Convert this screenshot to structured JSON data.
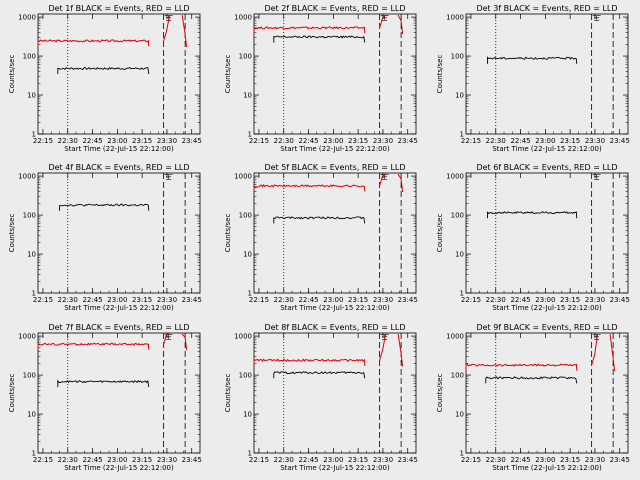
{
  "figure": {
    "background": "#ececec",
    "series_colors": {
      "events": "#000000",
      "lld": "#dd0000"
    }
  },
  "chart_data": [
    {
      "type": "line",
      "detector": "1f",
      "title": "Det 1f BLACK = Events, RED = LLD",
      "xlabel": "Start Time (22-Jul-15 22:12:00)",
      "ylabel": "Counts/sec",
      "xticks": [
        "22:15",
        "22:30",
        "22:45",
        "23:00",
        "23:15",
        "23:30",
        "23:45"
      ],
      "yticks": [
        "1",
        "10",
        "100",
        "1000"
      ],
      "yscale": "log",
      "ylim": [
        1,
        1200
      ],
      "events": {
        "start": "22:24",
        "end": "23:19",
        "level": 48
      },
      "lld": {
        "start": "22:12",
        "end": "23:19",
        "level": 245,
        "spike": true
      },
      "markers": {
        "dotted": "22:30",
        "dashed": [
          "23:28",
          "23:41"
        ]
      },
      "symbol": "±"
    },
    {
      "type": "line",
      "detector": "2f",
      "title": "Det 2f BLACK = Events, RED = LLD",
      "xlabel": "Start Time (22-Jul-15 22:12:00)",
      "ylabel": "Counts/sec",
      "xticks": [
        "22:15",
        "22:30",
        "22:45",
        "23:00",
        "23:15",
        "23:30",
        "23:45"
      ],
      "yticks": [
        "1",
        "10",
        "100",
        "1000"
      ],
      "yscale": "log",
      "ylim": [
        1,
        1200
      ],
      "events": {
        "start": "22:24",
        "end": "23:19",
        "level": 310
      },
      "lld": {
        "start": "22:12",
        "end": "23:19",
        "level": 530,
        "spike": true
      },
      "markers": {
        "dotted": "22:30",
        "dashed": [
          "23:28",
          "23:41"
        ]
      },
      "symbol": "±"
    },
    {
      "type": "line",
      "detector": "3f",
      "title": "Det 3f BLACK = Events, RED = LLD",
      "xlabel": "Start Time (22-Jul-15 22:12:00)",
      "ylabel": "Counts/sec",
      "xticks": [
        "22:15",
        "22:30",
        "22:45",
        "23:00",
        "23:15",
        "23:30",
        "23:45"
      ],
      "yticks": [
        "1",
        "10",
        "100",
        "1000"
      ],
      "yscale": "log",
      "ylim": [
        1,
        1200
      ],
      "events": {
        "start": "22:25",
        "end": "23:19",
        "level": 88
      },
      "lld": null,
      "markers": {
        "dotted": "22:30",
        "dashed": [
          "23:28",
          "23:41"
        ]
      },
      "symbol": "±"
    },
    {
      "type": "line",
      "detector": "4f",
      "title": "Det 4f BLACK = Events, RED = LLD",
      "xlabel": "Start Time (22-Jul-15 22:12:00)",
      "ylabel": "Counts/sec",
      "xticks": [
        "22:15",
        "22:30",
        "22:45",
        "23:00",
        "23:15",
        "23:30",
        "23:45"
      ],
      "yticks": [
        "1",
        "10",
        "100",
        "1000"
      ],
      "yscale": "log",
      "ylim": [
        1,
        1200
      ],
      "events": {
        "start": "22:25",
        "end": "23:19",
        "level": 180
      },
      "lld": null,
      "markers": {
        "dotted": "22:30",
        "dashed": [
          "23:28",
          "23:41"
        ]
      },
      "symbol": "±"
    },
    {
      "type": "line",
      "detector": "5f",
      "title": "Det 5f BLACK = Events, RED = LLD",
      "xlabel": "Start Time (22-Jul-15 22:12:00)",
      "ylabel": "Counts/sec",
      "xticks": [
        "22:15",
        "22:30",
        "22:45",
        "23:00",
        "23:15",
        "23:30",
        "23:45"
      ],
      "yticks": [
        "1",
        "10",
        "100",
        "1000"
      ],
      "yscale": "log",
      "ylim": [
        1,
        1200
      ],
      "events": {
        "start": "22:24",
        "end": "23:19",
        "level": 85
      },
      "lld": {
        "start": "22:12",
        "end": "23:19",
        "level": 560,
        "spike": true
      },
      "markers": {
        "dotted": "22:30",
        "dashed": [
          "23:28",
          "23:41"
        ]
      },
      "symbol": "±"
    },
    {
      "type": "line",
      "detector": "6f",
      "title": "Det 6f BLACK = Events, RED = LLD",
      "xlabel": "Start Time (22-Jul-15 22:12:00)",
      "ylabel": "Counts/sec",
      "xticks": [
        "22:15",
        "22:30",
        "22:45",
        "23:00",
        "23:15",
        "23:30",
        "23:45"
      ],
      "yticks": [
        "1",
        "10",
        "100",
        "1000"
      ],
      "yscale": "log",
      "ylim": [
        1,
        1200
      ],
      "events": {
        "start": "22:25",
        "end": "23:19",
        "level": 115
      },
      "lld": null,
      "markers": {
        "dotted": "22:30",
        "dashed": [
          "23:28",
          "23:41"
        ]
      },
      "symbol": "±"
    },
    {
      "type": "line",
      "detector": "7f",
      "title": "Det 7f BLACK = Events, RED = LLD",
      "xlabel": "Start Time (22-Jul-15 22:12:00)",
      "ylabel": "Counts/sec",
      "xticks": [
        "22:15",
        "22:30",
        "22:45",
        "23:00",
        "23:15",
        "23:30",
        "23:45"
      ],
      "yticks": [
        "1",
        "10",
        "100",
        "1000"
      ],
      "yscale": "log",
      "ylim": [
        1,
        1200
      ],
      "events": {
        "start": "22:24",
        "end": "23:19",
        "level": 68
      },
      "lld": {
        "start": "22:12",
        "end": "23:19",
        "level": 620,
        "spike": true
      },
      "markers": {
        "dotted": "22:30",
        "dashed": [
          "23:28",
          "23:41"
        ]
      },
      "symbol": "±"
    },
    {
      "type": "line",
      "detector": "8f",
      "title": "Det 8f BLACK = Events, RED = LLD",
      "xlabel": "Start Time (22-Jul-15 22:12:00)",
      "ylabel": "Counts/sec",
      "xticks": [
        "22:15",
        "22:30",
        "22:45",
        "23:00",
        "23:15",
        "23:30",
        "23:45"
      ],
      "yticks": [
        "1",
        "10",
        "100",
        "1000"
      ],
      "yscale": "log",
      "ylim": [
        1,
        1200
      ],
      "events": {
        "start": "22:24",
        "end": "23:19",
        "level": 115
      },
      "lld": {
        "start": "22:12",
        "end": "23:19",
        "level": 240,
        "spike": true
      },
      "markers": {
        "dotted": "22:30",
        "dashed": [
          "23:28",
          "23:41"
        ]
      },
      "symbol": "±"
    },
    {
      "type": "line",
      "detector": "9f",
      "title": "Det 9f BLACK = Events, RED = LLD",
      "xlabel": "Start Time (22-Jul-15 22:12:00)",
      "ylabel": "Counts/sec",
      "xticks": [
        "22:15",
        "22:30",
        "22:45",
        "23:00",
        "23:15",
        "23:30",
        "23:45"
      ],
      "yticks": [
        "1",
        "10",
        "100",
        "1000"
      ],
      "yscale": "log",
      "ylim": [
        1,
        1200
      ],
      "events": {
        "start": "22:24",
        "end": "23:19",
        "level": 85
      },
      "lld": {
        "start": "22:12",
        "end": "23:19",
        "level": 180,
        "spike": true
      },
      "markers": {
        "dotted": "22:30",
        "dashed": [
          "23:28",
          "23:41"
        ]
      },
      "symbol": "±"
    }
  ]
}
